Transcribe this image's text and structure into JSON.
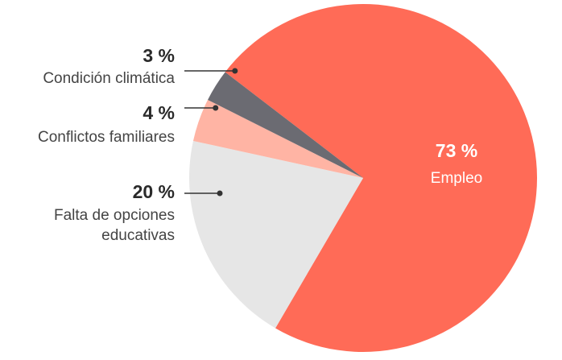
{
  "chart_data": {
    "type": "pie",
    "slices": [
      {
        "label": "Empleo",
        "value": 73,
        "value_text": "73 %",
        "color": "#ff6b57",
        "label_lines": [
          "Empleo"
        ]
      },
      {
        "label": "Falta de opciones educativas",
        "value": 20,
        "value_text": "20 %",
        "color": "#e6e6e6",
        "label_lines": [
          "Falta de opciones",
          "educativas"
        ]
      },
      {
        "label": "Conflictos familiares",
        "value": 4,
        "value_text": "4 %",
        "color": "#ffb4a4",
        "label_lines": [
          "Conflictos familiares"
        ]
      },
      {
        "label": "Condición climática",
        "value": 3,
        "value_text": "3 %",
        "color": "#6b6b72",
        "label_lines": [
          "Condición climática"
        ]
      }
    ],
    "legend": "callout-left",
    "leader_color": "#333333"
  }
}
